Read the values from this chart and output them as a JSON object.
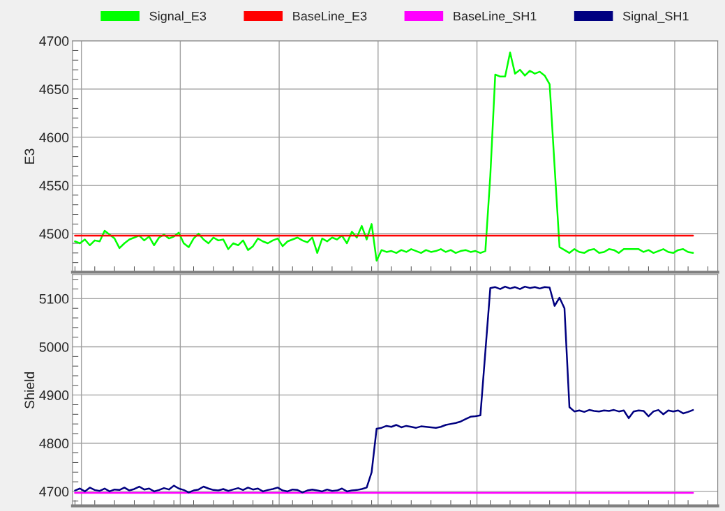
{
  "chart_data": [
    {
      "type": "line",
      "ylabel": "E3",
      "ylim": [
        4460,
        4700
      ],
      "yticks": [
        4500,
        4550,
        4600,
        4650,
        4700
      ],
      "grid": true,
      "legend": "top",
      "tick_labels": "y",
      "categories": [
        null,
        null,
        null,
        null,
        null,
        null,
        null,
        null,
        null,
        null,
        null,
        null,
        null,
        null,
        null,
        null,
        null,
        null,
        null,
        null,
        null,
        null,
        null,
        null,
        null,
        null,
        null,
        null,
        null,
        null,
        null,
        null,
        null,
        null,
        null,
        null,
        null,
        null,
        null,
        null,
        null,
        null,
        null,
        null,
        null,
        null,
        null,
        null,
        null,
        null,
        null,
        null,
        null,
        null,
        null,
        null,
        null,
        null,
        null,
        null,
        null,
        null,
        null,
        null,
        null,
        null,
        null,
        null,
        null,
        null,
        null,
        null,
        null,
        null,
        null,
        null,
        null,
        null,
        null,
        null,
        null,
        null,
        null,
        null,
        null,
        null,
        null,
        null,
        null,
        null,
        null,
        null,
        null,
        null,
        null,
        null,
        null,
        null,
        null,
        null,
        null,
        null,
        null,
        null,
        null,
        null,
        null,
        null,
        null,
        null,
        null,
        null,
        null,
        null,
        null,
        null,
        null,
        null,
        null,
        null,
        null,
        null,
        null,
        null,
        null,
        null
      ],
      "series": [
        {
          "name": "Signal_E3",
          "color": "#00ff00",
          "values": [
            4492,
            4490,
            4494,
            4488,
            4493,
            4492,
            4503,
            4499,
            4495,
            4485,
            4490,
            4494,
            4496,
            4498,
            4493,
            4497,
            4488,
            4496,
            4499,
            4495,
            4497,
            4501,
            4490,
            4486,
            4495,
            4500,
            4494,
            4490,
            4496,
            4493,
            4494,
            4484,
            4490,
            4488,
            4493,
            4483,
            4487,
            4495,
            4492,
            4490,
            4493,
            4495,
            4487,
            4492,
            4494,
            4496,
            4493,
            4491,
            4496,
            4480,
            4495,
            4492,
            4496,
            4494,
            4498,
            4490,
            4502,
            4496,
            4508,
            4494,
            4510,
            4472,
            4483,
            4481,
            4482,
            4480,
            4483,
            4481,
            4484,
            4482,
            4480,
            4483,
            4481,
            4482,
            4484,
            4481,
            4483,
            4480,
            4482,
            4483,
            4481,
            4482,
            4480,
            4482,
            4560,
            4665,
            4663,
            4663,
            4688,
            4666,
            4670,
            4664,
            4669,
            4666,
            4668,
            4664,
            4655,
            4570,
            4486,
            4483,
            4480,
            4484,
            4481,
            4480,
            4483,
            4484,
            4480,
            4481,
            4484,
            4483,
            4480,
            4484,
            4484,
            4484,
            4484,
            4481,
            4483,
            4480,
            4482,
            4484,
            4481,
            4480,
            4483,
            4484,
            4481,
            4480
          ]
        },
        {
          "name": "BaseLine_E3",
          "color": "#ff0000",
          "values": [
            4498,
            4498,
            4498,
            4498,
            4498,
            4498,
            4498,
            4498,
            4498,
            4498,
            4498,
            4498,
            4498,
            4498,
            4498,
            4498,
            4498,
            4498,
            4498,
            4498,
            4498,
            4498,
            4498,
            4498,
            4498,
            4498,
            4498,
            4498,
            4498,
            4498,
            4498,
            4498,
            4498,
            4498,
            4498,
            4498,
            4498,
            4498,
            4498,
            4498,
            4498,
            4498,
            4498,
            4498,
            4498,
            4498,
            4498,
            4498,
            4498,
            4498,
            4498,
            4498,
            4498,
            4498,
            4498,
            4498,
            4498,
            4498,
            4498,
            4498,
            4498,
            4498,
            4498,
            4498,
            4498,
            4498,
            4498,
            4498,
            4498,
            4498,
            4498,
            4498,
            4498,
            4498,
            4498,
            4498,
            4498,
            4498,
            4498,
            4498,
            4498,
            4498,
            4498,
            4498,
            4498,
            4498,
            4498,
            4498,
            4498,
            4498,
            4498,
            4498,
            4498,
            4498,
            4498,
            4498,
            4498,
            4498,
            4498,
            4498,
            4498,
            4498,
            4498,
            4498,
            4498,
            4498,
            4498,
            4498,
            4498,
            4498,
            4498,
            4498,
            4498,
            4498,
            4498,
            4498,
            4498,
            4498,
            4498,
            4498,
            4498,
            4498,
            4498,
            4498,
            4498,
            4498
          ]
        }
      ]
    },
    {
      "type": "line",
      "ylabel": "Shield",
      "ylim": [
        4670,
        5150
      ],
      "yticks": [
        4700,
        4800,
        4900,
        5000,
        5100
      ],
      "grid": true,
      "legend": "top",
      "tick_labels": "y",
      "categories": [
        null,
        null,
        null,
        null,
        null,
        null,
        null,
        null,
        null,
        null,
        null,
        null,
        null,
        null,
        null,
        null,
        null,
        null,
        null,
        null,
        null,
        null,
        null,
        null,
        null,
        null,
        null,
        null,
        null,
        null,
        null,
        null,
        null,
        null,
        null,
        null,
        null,
        null,
        null,
        null,
        null,
        null,
        null,
        null,
        null,
        null,
        null,
        null,
        null,
        null,
        null,
        null,
        null,
        null,
        null,
        null,
        null,
        null,
        null,
        null,
        null,
        null,
        null,
        null,
        null,
        null,
        null,
        null,
        null,
        null,
        null,
        null,
        null,
        null,
        null,
        null,
        null,
        null,
        null,
        null,
        null,
        null,
        null,
        null,
        null,
        null,
        null,
        null,
        null,
        null,
        null,
        null,
        null,
        null,
        null,
        null,
        null,
        null,
        null,
        null,
        null,
        null,
        null,
        null,
        null,
        null,
        null,
        null,
        null,
        null,
        null,
        null,
        null,
        null,
        null,
        null,
        null,
        null,
        null,
        null,
        null,
        null,
        null,
        null,
        null,
        null
      ],
      "series": [
        {
          "name": "BaseLine_SH1",
          "color": "#ff00ff",
          "values": [
            4697,
            4697,
            4697,
            4697,
            4697,
            4697,
            4697,
            4697,
            4697,
            4697,
            4697,
            4697,
            4697,
            4697,
            4697,
            4697,
            4697,
            4697,
            4697,
            4697,
            4697,
            4697,
            4697,
            4697,
            4697,
            4697,
            4697,
            4697,
            4697,
            4697,
            4697,
            4697,
            4697,
            4697,
            4697,
            4697,
            4697,
            4697,
            4697,
            4697,
            4697,
            4697,
            4697,
            4697,
            4697,
            4697,
            4697,
            4697,
            4697,
            4697,
            4697,
            4697,
            4697,
            4697,
            4697,
            4697,
            4697,
            4697,
            4697,
            4697,
            4697,
            4697,
            4697,
            4697,
            4697,
            4697,
            4697,
            4697,
            4697,
            4697,
            4697,
            4697,
            4697,
            4697,
            4697,
            4697,
            4697,
            4697,
            4697,
            4697,
            4697,
            4697,
            4697,
            4697,
            4697,
            4697,
            4697,
            4697,
            4697,
            4697,
            4697,
            4697,
            4697,
            4697,
            4697,
            4697,
            4697,
            4697,
            4697,
            4697,
            4697,
            4697,
            4697,
            4697,
            4697,
            4697,
            4697,
            4697,
            4697,
            4697,
            4697,
            4697,
            4697,
            4697,
            4697,
            4697,
            4697,
            4697,
            4697,
            4697,
            4697,
            4697,
            4697,
            4697,
            4697,
            4697
          ]
        },
        {
          "name": "Signal_SH1",
          "color": "#000080",
          "values": [
            4702,
            4706,
            4700,
            4708,
            4703,
            4701,
            4706,
            4700,
            4704,
            4703,
            4708,
            4702,
            4705,
            4710,
            4704,
            4706,
            4700,
            4703,
            4707,
            4704,
            4712,
            4706,
            4703,
            4698,
            4702,
            4704,
            4710,
            4706,
            4703,
            4702,
            4705,
            4701,
            4704,
            4707,
            4703,
            4708,
            4704,
            4706,
            4700,
            4703,
            4705,
            4708,
            4702,
            4700,
            4704,
            4703,
            4698,
            4702,
            4704,
            4702,
            4700,
            4704,
            4701,
            4702,
            4706,
            4700,
            4702,
            4703,
            4705,
            4708,
            4740,
            4830,
            4832,
            4836,
            4834,
            4838,
            4833,
            4836,
            4834,
            4832,
            4835,
            4834,
            4833,
            4832,
            4834,
            4838,
            4840,
            4842,
            4845,
            4850,
            4855,
            4856,
            4858,
            4990,
            5122,
            5124,
            5120,
            5125,
            5121,
            5124,
            5120,
            5125,
            5122,
            5124,
            5121,
            5124,
            5123,
            5085,
            5102,
            5080,
            4875,
            4866,
            4868,
            4865,
            4869,
            4867,
            4866,
            4868,
            4867,
            4869,
            4866,
            4868,
            4852,
            4866,
            4868,
            4867,
            4856,
            4866,
            4869,
            4860,
            4868,
            4866,
            4868,
            4862,
            4865,
            4869
          ]
        }
      ]
    }
  ]
}
